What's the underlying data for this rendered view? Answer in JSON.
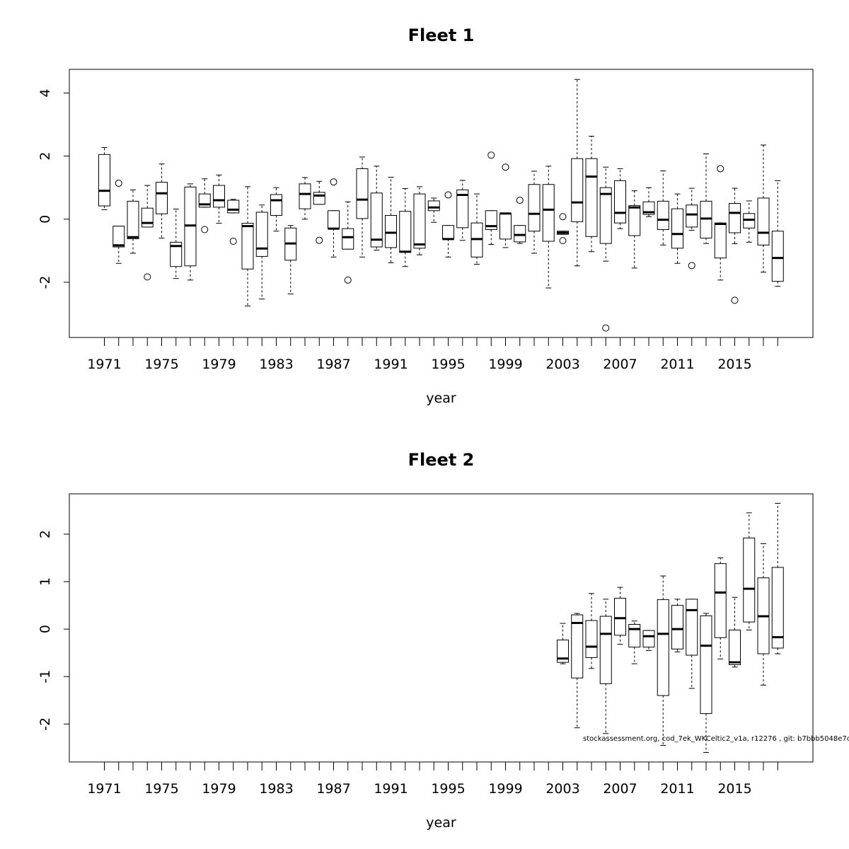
{
  "footer": "stockassessment.org, cod_7ek_WKCeltic2_v1a, r12276 , git: b7bbb5048e7c",
  "chart_data": [
    {
      "type": "boxplot",
      "title": "Fleet 1",
      "xlabel": "year",
      "ylabel": "",
      "ylim": [
        -3.75,
        4.75
      ],
      "yticks": [
        -2,
        0,
        2,
        4
      ],
      "xtick_labels": [
        "1971",
        "1975",
        "1979",
        "1983",
        "1987",
        "1991",
        "1995",
        "1999",
        "2003",
        "2007",
        "2011",
        "2015"
      ],
      "years": [
        1971,
        1972,
        1973,
        1974,
        1975,
        1976,
        1977,
        1978,
        1979,
        1980,
        1981,
        1982,
        1983,
        1984,
        1985,
        1986,
        1987,
        1988,
        1989,
        1990,
        1991,
        1992,
        1993,
        1994,
        1995,
        1996,
        1997,
        1998,
        1999,
        2000,
        2001,
        2002,
        2003,
        2004,
        2005,
        2006,
        2007,
        2008,
        2009,
        2010,
        2011,
        2012,
        2013,
        2014,
        2015,
        2016,
        2017,
        2018
      ],
      "boxes": [
        {
          "year": 1971,
          "whisker_low": 0.3,
          "q1": 0.42,
          "median": 0.9,
          "q3": 2.05,
          "whisker_high": 2.27,
          "outliers": []
        },
        {
          "year": 1972,
          "whisker_low": -1.4,
          "q1": -0.88,
          "median": -0.83,
          "q3": -0.22,
          "whisker_high": -0.22,
          "outliers": [
            1.14
          ]
        },
        {
          "year": 1973,
          "whisker_low": -1.08,
          "q1": -0.62,
          "median": -0.57,
          "q3": 0.57,
          "whisker_high": 0.93,
          "outliers": []
        },
        {
          "year": 1974,
          "whisker_low": -0.25,
          "q1": -0.25,
          "median": -0.12,
          "q3": 0.35,
          "whisker_high": 1.07,
          "outliers": [
            -1.83
          ]
        },
        {
          "year": 1975,
          "whisker_low": -0.6,
          "q1": 0.17,
          "median": 0.82,
          "q3": 1.17,
          "whisker_high": 1.75,
          "outliers": []
        },
        {
          "year": 1976,
          "whisker_low": -1.88,
          "q1": -1.5,
          "median": -0.85,
          "q3": -0.73,
          "whisker_high": 0.32,
          "outliers": []
        },
        {
          "year": 1977,
          "whisker_low": -1.93,
          "q1": -1.48,
          "median": -0.2,
          "q3": 1.02,
          "whisker_high": 1.12,
          "outliers": []
        },
        {
          "year": 1978,
          "whisker_low": 0.38,
          "q1": 0.38,
          "median": 0.47,
          "q3": 0.8,
          "whisker_high": 1.28,
          "outliers": [
            -0.33
          ]
        },
        {
          "year": 1979,
          "whisker_low": -0.13,
          "q1": 0.38,
          "median": 0.6,
          "q3": 1.07,
          "whisker_high": 1.4,
          "outliers": []
        },
        {
          "year": 1980,
          "whisker_low": 0.2,
          "q1": 0.2,
          "median": 0.3,
          "q3": 0.6,
          "whisker_high": 0.63,
          "outliers": [
            -0.7
          ]
        },
        {
          "year": 1981,
          "whisker_low": -2.75,
          "q1": -1.58,
          "median": -0.22,
          "q3": -0.13,
          "whisker_high": 1.03,
          "outliers": []
        },
        {
          "year": 1982,
          "whisker_low": -2.53,
          "q1": -1.18,
          "median": -0.93,
          "q3": 0.22,
          "whisker_high": 0.45,
          "outliers": []
        },
        {
          "year": 1983,
          "whisker_low": -0.38,
          "q1": 0.12,
          "median": 0.6,
          "q3": 0.78,
          "whisker_high": 1.0,
          "outliers": []
        },
        {
          "year": 1984,
          "whisker_low": -2.37,
          "q1": -1.3,
          "median": -0.77,
          "q3": -0.28,
          "whisker_high": -0.2,
          "outliers": []
        },
        {
          "year": 1985,
          "whisker_low": 0.0,
          "q1": 0.33,
          "median": 0.8,
          "q3": 1.12,
          "whisker_high": 1.32,
          "outliers": []
        },
        {
          "year": 1986,
          "whisker_low": 0.47,
          "q1": 0.47,
          "median": 0.75,
          "q3": 0.85,
          "whisker_high": 1.2,
          "outliers": [
            -0.67
          ]
        },
        {
          "year": 1987,
          "whisker_low": -1.2,
          "q1": -0.3,
          "median": -0.3,
          "q3": 0.27,
          "whisker_high": 0.27,
          "outliers": [
            1.18
          ]
        },
        {
          "year": 1988,
          "whisker_low": -0.95,
          "q1": -0.95,
          "median": -0.57,
          "q3": -0.3,
          "whisker_high": 0.55,
          "outliers": [
            -1.93
          ]
        },
        {
          "year": 1989,
          "whisker_low": -1.2,
          "q1": 0.02,
          "median": 0.62,
          "q3": 1.6,
          "whisker_high": 1.97,
          "outliers": []
        },
        {
          "year": 1990,
          "whisker_low": -0.98,
          "q1": -0.88,
          "median": -0.65,
          "q3": 0.83,
          "whisker_high": 1.68,
          "outliers": []
        },
        {
          "year": 1991,
          "whisker_low": -1.38,
          "q1": -0.9,
          "median": -0.43,
          "q3": 0.12,
          "whisker_high": 1.33,
          "outliers": []
        },
        {
          "year": 1992,
          "whisker_low": -1.5,
          "q1": -1.05,
          "median": -1.03,
          "q3": 0.25,
          "whisker_high": 0.97,
          "outliers": []
        },
        {
          "year": 1993,
          "whisker_low": -1.13,
          "q1": -0.92,
          "median": -0.8,
          "q3": 0.8,
          "whisker_high": 1.03,
          "outliers": []
        },
        {
          "year": 1994,
          "whisker_low": -0.1,
          "q1": 0.27,
          "median": 0.37,
          "q3": 0.58,
          "whisker_high": 0.67,
          "outliers": []
        },
        {
          "year": 1995,
          "whisker_low": -1.2,
          "q1": -0.63,
          "median": -0.63,
          "q3": -0.2,
          "whisker_high": -0.2,
          "outliers": [
            0.77
          ]
        },
        {
          "year": 1996,
          "whisker_low": -0.67,
          "q1": -0.27,
          "median": 0.77,
          "q3": 0.93,
          "whisker_high": 1.23,
          "outliers": []
        },
        {
          "year": 1997,
          "whisker_low": -1.43,
          "q1": -1.2,
          "median": -0.63,
          "q3": -0.12,
          "whisker_high": 0.8,
          "outliers": []
        },
        {
          "year": 1998,
          "whisker_low": -0.8,
          "q1": -0.33,
          "median": -0.22,
          "q3": 0.27,
          "whisker_high": 0.27,
          "outliers": [
            2.03
          ]
        },
        {
          "year": 1999,
          "whisker_low": -0.9,
          "q1": -0.63,
          "median": 0.18,
          "q3": 0.18,
          "whisker_high": 0.18,
          "outliers": [
            1.65
          ]
        },
        {
          "year": 2000,
          "whisker_low": -0.77,
          "q1": -0.72,
          "median": -0.5,
          "q3": -0.2,
          "whisker_high": -0.2,
          "outliers": [
            0.6
          ]
        },
        {
          "year": 2001,
          "whisker_low": -1.08,
          "q1": -0.38,
          "median": 0.17,
          "q3": 1.1,
          "whisker_high": 1.52,
          "outliers": []
        },
        {
          "year": 2002,
          "whisker_low": -2.18,
          "q1": -0.7,
          "median": 0.3,
          "q3": 1.1,
          "whisker_high": 1.68,
          "outliers": []
        },
        {
          "year": 2003,
          "whisker_low": -0.48,
          "q1": -0.48,
          "median": -0.43,
          "q3": -0.38,
          "whisker_high": -0.38,
          "outliers": [
            0.08,
            -0.68
          ]
        },
        {
          "year": 2004,
          "whisker_low": -1.48,
          "q1": -0.08,
          "median": 0.53,
          "q3": 1.92,
          "whisker_high": 4.43,
          "outliers": []
        },
        {
          "year": 2005,
          "whisker_low": -1.03,
          "q1": -0.55,
          "median": 1.35,
          "q3": 1.92,
          "whisker_high": 2.63,
          "outliers": []
        },
        {
          "year": 2006,
          "whisker_low": -1.33,
          "q1": -0.77,
          "median": 0.8,
          "q3": 1.0,
          "whisker_high": 1.65,
          "outliers": [
            -3.45
          ]
        },
        {
          "year": 2007,
          "whisker_low": -0.3,
          "q1": -0.12,
          "median": 0.2,
          "q3": 1.22,
          "whisker_high": 1.6,
          "outliers": []
        },
        {
          "year": 2008,
          "whisker_low": -1.55,
          "q1": -0.52,
          "median": 0.37,
          "q3": 0.43,
          "whisker_high": 0.9,
          "outliers": []
        },
        {
          "year": 2009,
          "whisker_low": 0.08,
          "q1": 0.15,
          "median": 0.22,
          "q3": 0.55,
          "whisker_high": 1.0,
          "outliers": []
        },
        {
          "year": 2010,
          "whisker_low": -0.82,
          "q1": -0.33,
          "median": -0.02,
          "q3": 0.57,
          "whisker_high": 1.53,
          "outliers": []
        },
        {
          "year": 2011,
          "whisker_low": -1.4,
          "q1": -0.92,
          "median": -0.47,
          "q3": 0.33,
          "whisker_high": 0.8,
          "outliers": []
        },
        {
          "year": 2012,
          "whisker_low": -0.35,
          "q1": -0.25,
          "median": 0.15,
          "q3": 0.45,
          "whisker_high": 0.98,
          "outliers": [
            -1.47
          ]
        },
        {
          "year": 2013,
          "whisker_low": -0.77,
          "q1": -0.6,
          "median": 0.02,
          "q3": 0.57,
          "whisker_high": 2.07,
          "outliers": []
        },
        {
          "year": 2014,
          "whisker_low": -1.93,
          "q1": -1.23,
          "median": -0.15,
          "q3": -0.12,
          "whisker_high": -0.12,
          "outliers": [
            1.6
          ]
        },
        {
          "year": 2015,
          "whisker_low": -0.78,
          "q1": -0.43,
          "median": 0.2,
          "q3": 0.5,
          "whisker_high": 0.98,
          "outliers": [
            -2.57
          ]
        },
        {
          "year": 2016,
          "whisker_low": -0.73,
          "q1": -0.28,
          "median": -0.02,
          "q3": 0.18,
          "whisker_high": 0.58,
          "outliers": []
        },
        {
          "year": 2017,
          "whisker_low": -1.68,
          "q1": -0.82,
          "median": -0.43,
          "q3": 0.67,
          "whisker_high": 2.35,
          "outliers": []
        },
        {
          "year": 2018,
          "whisker_low": -2.13,
          "q1": -1.97,
          "median": -1.23,
          "q3": -0.38,
          "whisker_high": 1.22,
          "outliers": []
        }
      ]
    },
    {
      "type": "boxplot",
      "title": "Fleet 2",
      "xlabel": "year",
      "ylabel": "",
      "ylim": [
        -2.8,
        2.85
      ],
      "yticks": [
        -2,
        -1,
        0,
        1,
        2
      ],
      "xtick_labels": [
        "1971",
        "1975",
        "1979",
        "1983",
        "1987",
        "1991",
        "1995",
        "1999",
        "2003",
        "2007",
        "2011",
        "2015"
      ],
      "years": [
        1971,
        1972,
        1973,
        1974,
        1975,
        1976,
        1977,
        1978,
        1979,
        1980,
        1981,
        1982,
        1983,
        1984,
        1985,
        1986,
        1987,
        1988,
        1989,
        1990,
        1991,
        1992,
        1993,
        1994,
        1995,
        1996,
        1997,
        1998,
        1999,
        2000,
        2001,
        2002,
        2003,
        2004,
        2005,
        2006,
        2007,
        2008,
        2009,
        2010,
        2011,
        2012,
        2013,
        2014,
        2015,
        2016,
        2017,
        2018
      ],
      "boxes": [
        {
          "year": 2003,
          "whisker_low": -0.73,
          "q1": -0.7,
          "median": -0.62,
          "q3": -0.23,
          "whisker_high": 0.12,
          "outliers": []
        },
        {
          "year": 2004,
          "whisker_low": -2.08,
          "q1": -1.03,
          "median": 0.13,
          "q3": 0.3,
          "whisker_high": 0.33,
          "outliers": []
        },
        {
          "year": 2005,
          "whisker_low": -0.83,
          "q1": -0.6,
          "median": -0.37,
          "q3": 0.18,
          "whisker_high": 0.75,
          "outliers": []
        },
        {
          "year": 2006,
          "whisker_low": -2.2,
          "q1": -1.15,
          "median": -0.1,
          "q3": 0.27,
          "whisker_high": 0.63,
          "outliers": []
        },
        {
          "year": 2007,
          "whisker_low": -0.32,
          "q1": -0.13,
          "median": 0.23,
          "q3": 0.65,
          "whisker_high": 0.88,
          "outliers": []
        },
        {
          "year": 2008,
          "whisker_low": -0.73,
          "q1": -0.38,
          "median": 0.0,
          "q3": 0.1,
          "whisker_high": 0.17,
          "outliers": []
        },
        {
          "year": 2009,
          "whisker_low": -0.45,
          "q1": -0.38,
          "median": -0.15,
          "q3": -0.03,
          "whisker_high": -0.03,
          "outliers": []
        },
        {
          "year": 2010,
          "whisker_low": -2.45,
          "q1": -1.4,
          "median": -0.1,
          "q3": 0.62,
          "whisker_high": 1.12,
          "outliers": []
        },
        {
          "year": 2011,
          "whisker_low": -0.48,
          "q1": -0.42,
          "median": 0.0,
          "q3": 0.5,
          "whisker_high": 0.63,
          "outliers": []
        },
        {
          "year": 2012,
          "whisker_low": -1.25,
          "q1": -0.55,
          "median": 0.4,
          "q3": 0.63,
          "whisker_high": 0.63,
          "outliers": []
        },
        {
          "year": 2013,
          "whisker_low": -2.6,
          "q1": -1.78,
          "median": -0.35,
          "q3": 0.28,
          "whisker_high": 0.33,
          "outliers": []
        },
        {
          "year": 2014,
          "whisker_low": -0.63,
          "q1": -0.18,
          "median": 0.77,
          "q3": 1.38,
          "whisker_high": 1.5,
          "outliers": []
        },
        {
          "year": 2015,
          "whisker_low": -0.8,
          "q1": -0.75,
          "median": -0.7,
          "q3": -0.02,
          "whisker_high": 0.67,
          "outliers": []
        },
        {
          "year": 2016,
          "whisker_low": -0.02,
          "q1": 0.15,
          "median": 0.85,
          "q3": 1.92,
          "whisker_high": 2.45,
          "outliers": []
        },
        {
          "year": 2017,
          "whisker_low": -1.18,
          "q1": -0.52,
          "median": 0.27,
          "q3": 1.08,
          "whisker_high": 1.8,
          "outliers": []
        },
        {
          "year": 2018,
          "whisker_low": -0.52,
          "q1": -0.4,
          "median": -0.17,
          "q3": 1.3,
          "whisker_high": 2.65,
          "outliers": []
        }
      ]
    }
  ]
}
